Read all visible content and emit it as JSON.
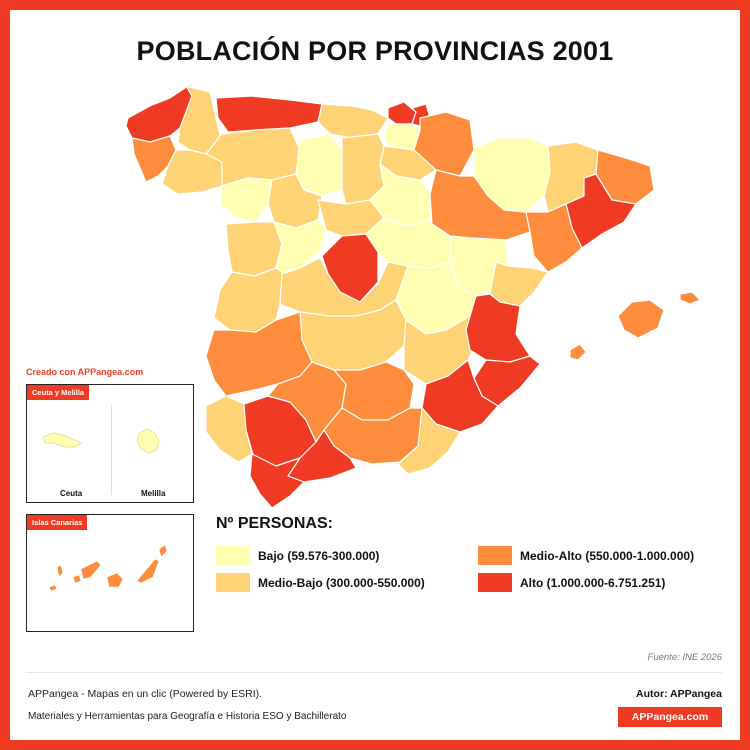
{
  "title": "POBLACIÓN POR PROVINCIAS 2001",
  "created_with": "Creado con APPangea.com",
  "colors": {
    "bajo": "#ffffb2",
    "medio_bajo": "#fed376",
    "medio_alto": "#fd8d3c",
    "alto": "#ef3b24",
    "frame": "#ef3b24",
    "border": "#ffffff"
  },
  "insets": {
    "ceuta_melilla": {
      "tag": "Ceuta y Melilla",
      "ceuta_label": "Ceuta",
      "melilla_label": "Melilla"
    },
    "canarias": {
      "tag": "Islas Canarias"
    }
  },
  "legend": {
    "title": "Nº PERSONAS:",
    "items": [
      {
        "class": "bajo",
        "label": "Bajo (59.576-300.000)",
        "color": "#ffffb2"
      },
      {
        "class": "medio_bajo",
        "label": "Medio-Bajo (300.000-550.000)",
        "color": "#fed376"
      },
      {
        "class": "medio_alto",
        "label": "Medio-Alto (550.000-1.000.000)",
        "color": "#fd8d3c"
      },
      {
        "class": "alto",
        "label": "Alto (1.000.000-6.751.251)",
        "color": "#ef3b24"
      }
    ]
  },
  "source": "Fuente: INE 2026",
  "footer": {
    "line1": "APPangea - Mapas en un clic (Powered by ESRI).",
    "line2": "Materiales y Herramientas para Geografía e Historia ESO y Bachillerato",
    "author": "Autor: APPangea",
    "brand": "APPangea.com"
  }
}
